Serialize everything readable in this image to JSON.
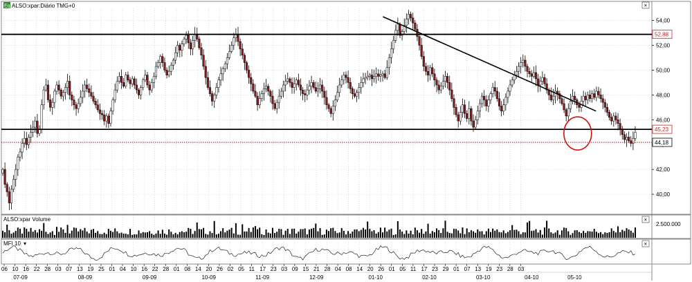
{
  "panels": {
    "price": {
      "header_badge": "Eq",
      "header_title": "ALSO:xpar:Diário TMG+0",
      "header_arrow": "▾",
      "close_glyph": "×"
    },
    "volume": {
      "header_title": "ALSO:xpar Volume",
      "close_glyph": "×",
      "axis_label": "2.500.000"
    },
    "mfi": {
      "header_title": "MFI 10",
      "header_arrow": "▾",
      "close_glyph": "×"
    }
  },
  "colors": {
    "up_candle": "#ffffff",
    "down_candle": "#8b1a1a",
    "candle_outline": "#000000",
    "line_level": "#000000",
    "dotted_level": "#8b1a1a",
    "marker_52_88": "#cc2222",
    "marker_45_23": "#cc2222",
    "circle": "#d01010",
    "grid": "#c8c8c8",
    "badge": "#2e8b2e"
  },
  "chart_data": {
    "type": "candlestick",
    "title": "ALSO:xpar:Diário TMG+0",
    "ylim": [
      38.5,
      55.2
    ],
    "y_ticks": [
      40,
      42,
      44,
      46,
      48,
      50,
      52,
      54
    ],
    "y_tick_labels": [
      "40,00",
      "42,00",
      "44,00",
      "46,00",
      "48,00",
      "50,00",
      "52,00",
      "54,00"
    ],
    "x_day_labels": [
      "06",
      "10",
      "16",
      "22",
      "28",
      "03",
      "07",
      "13",
      "19",
      "25",
      "01",
      "04",
      "10",
      "16",
      "22",
      "28",
      "01",
      "08",
      "14",
      "20",
      "26",
      "02",
      "05",
      "11",
      "17",
      "23",
      "03",
      "09",
      "15",
      "21",
      "28",
      "04",
      "08",
      "14",
      "20",
      "26",
      "01",
      "05",
      "11",
      "17",
      "23",
      "29",
      "01",
      "07",
      "13",
      "19",
      "23",
      "28",
      "03"
    ],
    "x_month_labels": [
      {
        "label": "07-09",
        "day_index": 1.5
      },
      {
        "label": "08-09",
        "day_index": 7.5
      },
      {
        "label": "09-09",
        "day_index": 13.5
      },
      {
        "label": "10-09",
        "day_index": 19
      },
      {
        "label": "11-09",
        "day_index": 24
      },
      {
        "label": "12-09",
        "day_index": 29
      },
      {
        "label": "01-10",
        "day_index": 34.5
      },
      {
        "label": "02-10",
        "day_index": 39.5
      },
      {
        "label": "03-10",
        "day_index": 44.5
      },
      {
        "label": "04-10",
        "day_index": 49
      },
      {
        "label": "05-10",
        "day_index": 53
      }
    ],
    "horizontal_levels": [
      {
        "value": 52.88,
        "label": "52,88",
        "style": "solid"
      },
      {
        "value": 45.23,
        "label": "45,23",
        "style": "solid"
      },
      {
        "value": 44.18,
        "label": "44,18",
        "style": "dotted"
      }
    ],
    "trendline": {
      "from": {
        "day_index": 35.2,
        "value": 54.3
      },
      "to": {
        "day_index": 55.0,
        "value": 46.7
      }
    },
    "highlight_circle": {
      "day_index": 53.3,
      "value": 44.9
    },
    "series": [
      {
        "closes": [
          42.0,
          40.8,
          40.2,
          39.3,
          40.4,
          41.2,
          42.0,
          43.0,
          43.4,
          44.1,
          44.5,
          44.0,
          44.6,
          45.0,
          45.4,
          45.9,
          44.9,
          45.2,
          47.2,
          48.4,
          48.8,
          47.6,
          47.0,
          47.4,
          48.3,
          48.8,
          48.4,
          47.9,
          48.2,
          48.6,
          49.1,
          48.0,
          47.6,
          47.2,
          46.9,
          47.3,
          47.8,
          48.3,
          48.8,
          48.5,
          48.2,
          47.9,
          47.5,
          47.2,
          46.8,
          46.5,
          46.4,
          45.9,
          46.3,
          45.7,
          46.7,
          47.6,
          48.4,
          49.1,
          49.5,
          49.0,
          48.7,
          49.6,
          49.2,
          48.9,
          49.3,
          48.8,
          48.4,
          48.0,
          48.6,
          49.2,
          49.6,
          48.8,
          48.4,
          49.0,
          49.5,
          50.3,
          50.6,
          51.1,
          50.6,
          50.0,
          49.6,
          49.9,
          50.4,
          50.8,
          51.4,
          52.0,
          51.6,
          52.1,
          52.5,
          52.8,
          52.2,
          51.7,
          52.4,
          52.9,
          52.5,
          51.8,
          51.2,
          50.3,
          49.4,
          48.6,
          48.1,
          47.5,
          48.0,
          48.6,
          49.2,
          49.7,
          50.1,
          50.5,
          51.0,
          51.5,
          52.0,
          52.6,
          52.9,
          52.3,
          51.7,
          51.2,
          50.6,
          50.0,
          49.4,
          48.9,
          48.3,
          47.9,
          47.2,
          47.7,
          48.1,
          48.5,
          48.7,
          48.3,
          47.9,
          47.3,
          46.9,
          47.4,
          47.9,
          48.3,
          48.8,
          49.1,
          49.3,
          49.0,
          48.6,
          48.9,
          49.2,
          48.8,
          48.4,
          48.1,
          48.0,
          48.4,
          48.7,
          49.0,
          48.6,
          48.3,
          48.5,
          48.8,
          48.3,
          47.8,
          47.2,
          46.9,
          46.5,
          47.1,
          47.6,
          48.2,
          48.8,
          49.2,
          49.6,
          49.4,
          49.0,
          48.5,
          48.1,
          47.9,
          48.2,
          48.6,
          49.0,
          49.3,
          49.4,
          49.5,
          49.6,
          49.3,
          49.5,
          49.7,
          49.5,
          49.6,
          49.7,
          49.4,
          50.2,
          51.0,
          51.7,
          52.4,
          53.2,
          53.7,
          52.8,
          53.1,
          53.6,
          54.1,
          54.5,
          54.2,
          53.8,
          53.3,
          52.7,
          52.0,
          51.1,
          50.3,
          49.9,
          49.6,
          50.2,
          49.7,
          49.2,
          48.8,
          48.4,
          48.7,
          49.1,
          49.5,
          49.0,
          48.4,
          47.7,
          47.0,
          46.4,
          45.9,
          46.6,
          47.2,
          46.5,
          46.1,
          46.9,
          45.9,
          45.4,
          46.0,
          46.7,
          47.3,
          47.9,
          47.6,
          47.1,
          47.6,
          48.1,
          48.6,
          48.3,
          47.7,
          47.1,
          46.7,
          47.2,
          47.8,
          48.3,
          48.8,
          49.2,
          49.6,
          49.9,
          50.3,
          50.6,
          50.8,
          50.3,
          49.9,
          49.7,
          49.5,
          49.8,
          49.3,
          48.8,
          49.1,
          49.4,
          48.9,
          48.4,
          48.0,
          47.6,
          47.9,
          48.3,
          48.1,
          47.7,
          47.3,
          46.8,
          46.3,
          46.9,
          47.5,
          47.9,
          47.6,
          47.2,
          47.0,
          47.5,
          47.9,
          47.6,
          48.0,
          47.7,
          48.1,
          47.8,
          48.3,
          48.0,
          47.7,
          47.4,
          47.0,
          46.6,
          46.2,
          45.9,
          46.3,
          46.0,
          45.7,
          45.2,
          44.8,
          44.4,
          44.6,
          44.3,
          44.1,
          44.5,
          45.0
        ]
      }
    ],
    "volume_axis_label": "2.500.000",
    "mfi_label": "MFI 10"
  }
}
